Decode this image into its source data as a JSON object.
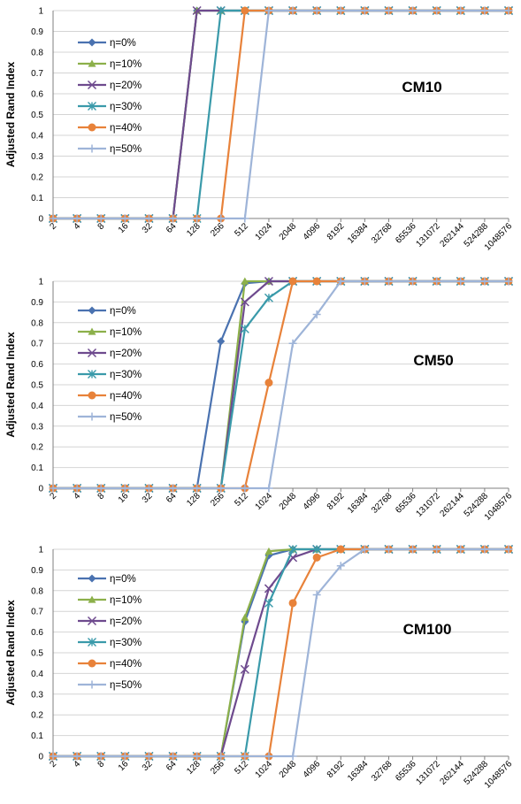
{
  "chart_data": [
    {
      "type": "line",
      "title": "CM10",
      "ylabel": "Adjusted Rand Index",
      "xlabel": "",
      "x": [
        "2",
        "4",
        "8",
        "16",
        "32",
        "64",
        "128",
        "256",
        "512",
        "1024",
        "2048",
        "4096",
        "8192",
        "16384",
        "32768",
        "65536",
        "131072",
        "262144",
        "524288",
        "1048576"
      ],
      "ylim": [
        0,
        1
      ],
      "yticks": [
        "0",
        "0.1",
        "0.2",
        "0.3",
        "0.4",
        "0.5",
        "0.6",
        "0.7",
        "0.8",
        "0.9",
        "1"
      ],
      "grid": true,
      "legend_position": "left",
      "series": [
        {
          "name": "η=0%",
          "color": "#4a72b0",
          "marker": "diamond",
          "values": [
            0,
            0,
            0,
            0,
            0,
            0,
            1,
            1,
            1,
            1,
            1,
            1,
            1,
            1,
            1,
            1,
            1,
            1,
            1,
            1
          ]
        },
        {
          "name": "η=10%",
          "color": "#8cb04a",
          "marker": "triangle",
          "values": [
            0,
            0,
            0,
            0,
            0,
            0,
            1,
            1,
            1,
            1,
            1,
            1,
            1,
            1,
            1,
            1,
            1,
            1,
            1,
            1
          ]
        },
        {
          "name": "η=20%",
          "color": "#6e4a8e",
          "marker": "x",
          "values": [
            0,
            0,
            0,
            0,
            0,
            0,
            1,
            1,
            1,
            1,
            1,
            1,
            1,
            1,
            1,
            1,
            1,
            1,
            1,
            1
          ]
        },
        {
          "name": "η=30%",
          "color": "#3a9aaa",
          "marker": "star",
          "values": [
            0,
            0,
            0,
            0,
            0,
            0,
            0,
            1,
            1,
            1,
            1,
            1,
            1,
            1,
            1,
            1,
            1,
            1,
            1,
            1
          ]
        },
        {
          "name": "η=40%",
          "color": "#e8823a",
          "marker": "circle",
          "values": [
            0,
            0,
            0,
            0,
            0,
            0,
            0,
            0,
            1,
            1,
            1,
            1,
            1,
            1,
            1,
            1,
            1,
            1,
            1,
            1
          ]
        },
        {
          "name": "η=50%",
          "color": "#9eb4d8",
          "marker": "plus",
          "values": [
            0,
            0,
            0,
            0,
            0,
            0,
            0,
            0,
            0,
            1,
            1,
            1,
            1,
            1,
            1,
            1,
            1,
            1,
            1,
            1
          ]
        }
      ]
    },
    {
      "type": "line",
      "title": "CM50",
      "ylabel": "Adjusted Rand Index",
      "xlabel": "",
      "x": [
        "2",
        "4",
        "8",
        "16",
        "32",
        "64",
        "128",
        "256",
        "512",
        "1024",
        "2048",
        "4096",
        "8192",
        "16384",
        "32768",
        "65536",
        "131072",
        "262144",
        "524288",
        "1048576"
      ],
      "ylim": [
        0,
        1
      ],
      "yticks": [
        "0",
        "0.1",
        "0.2",
        "0.3",
        "0.4",
        "0.5",
        "0.6",
        "0.7",
        "0.8",
        "0.9",
        "1"
      ],
      "grid": true,
      "legend_position": "left",
      "series": [
        {
          "name": "η=0%",
          "color": "#4a72b0",
          "marker": "diamond",
          "values": [
            0,
            0,
            0,
            0,
            0,
            0,
            0,
            0.71,
            0.99,
            1,
            1,
            1,
            1,
            1,
            1,
            1,
            1,
            1,
            1,
            1
          ]
        },
        {
          "name": "η=10%",
          "color": "#8cb04a",
          "marker": "triangle",
          "values": [
            0,
            0,
            0,
            0,
            0,
            0,
            0,
            0,
            1,
            1,
            1,
            1,
            1,
            1,
            1,
            1,
            1,
            1,
            1,
            1
          ]
        },
        {
          "name": "η=20%",
          "color": "#6e4a8e",
          "marker": "x",
          "values": [
            0,
            0,
            0,
            0,
            0,
            0,
            0,
            0,
            0.9,
            1,
            1,
            1,
            1,
            1,
            1,
            1,
            1,
            1,
            1,
            1
          ]
        },
        {
          "name": "η=30%",
          "color": "#3a9aaa",
          "marker": "star",
          "values": [
            0,
            0,
            0,
            0,
            0,
            0,
            0,
            0,
            0.77,
            0.92,
            1,
            1,
            1,
            1,
            1,
            1,
            1,
            1,
            1,
            1
          ]
        },
        {
          "name": "η=40%",
          "color": "#e8823a",
          "marker": "circle",
          "values": [
            0,
            0,
            0,
            0,
            0,
            0,
            0,
            0,
            0,
            0.51,
            1,
            1,
            1,
            1,
            1,
            1,
            1,
            1,
            1,
            1
          ]
        },
        {
          "name": "η=50%",
          "color": "#9eb4d8",
          "marker": "plus",
          "values": [
            0,
            0,
            0,
            0,
            0,
            0,
            0,
            0,
            0,
            0,
            0.7,
            0.84,
            1,
            1,
            1,
            1,
            1,
            1,
            1,
            1
          ]
        }
      ]
    },
    {
      "type": "line",
      "title": "CM100",
      "ylabel": "Adjusted Rand Index",
      "xlabel": "",
      "x": [
        "2",
        "4",
        "8",
        "16",
        "32",
        "64",
        "128",
        "256",
        "512",
        "1024",
        "2048",
        "4096",
        "8192",
        "16384",
        "32768",
        "65536",
        "131072",
        "262144",
        "524288",
        "1048576"
      ],
      "ylim": [
        0,
        1
      ],
      "yticks": [
        "0",
        "0.1",
        "0.2",
        "0.3",
        "0.4",
        "0.5",
        "0.6",
        "0.7",
        "0.8",
        "0.9",
        "1"
      ],
      "grid": true,
      "legend_position": "left",
      "series": [
        {
          "name": "η=0%",
          "color": "#4a72b0",
          "marker": "diamond",
          "values": [
            0,
            0,
            0,
            0,
            0,
            0,
            0,
            0,
            0.65,
            0.97,
            1,
            1,
            1,
            1,
            1,
            1,
            1,
            1,
            1,
            1
          ]
        },
        {
          "name": "η=10%",
          "color": "#8cb04a",
          "marker": "triangle",
          "values": [
            0,
            0,
            0,
            0,
            0,
            0,
            0,
            0,
            0.67,
            0.99,
            1,
            1,
            1,
            1,
            1,
            1,
            1,
            1,
            1,
            1
          ]
        },
        {
          "name": "η=20%",
          "color": "#6e4a8e",
          "marker": "x",
          "values": [
            0,
            0,
            0,
            0,
            0,
            0,
            0,
            0,
            0.42,
            0.81,
            0.96,
            1,
            1,
            1,
            1,
            1,
            1,
            1,
            1,
            1
          ]
        },
        {
          "name": "η=30%",
          "color": "#3a9aaa",
          "marker": "star",
          "values": [
            0,
            0,
            0,
            0,
            0,
            0,
            0,
            0,
            0,
            0.74,
            1,
            1,
            1,
            1,
            1,
            1,
            1,
            1,
            1,
            1
          ]
        },
        {
          "name": "η=40%",
          "color": "#e8823a",
          "marker": "circle",
          "values": [
            0,
            0,
            0,
            0,
            0,
            0,
            0,
            0,
            0,
            0,
            0.74,
            0.96,
            1,
            1,
            1,
            1,
            1,
            1,
            1,
            1
          ]
        },
        {
          "name": "η=50%",
          "color": "#9eb4d8",
          "marker": "plus",
          "values": [
            0,
            0,
            0,
            0,
            0,
            0,
            0,
            0,
            0,
            0,
            0,
            0.78,
            0.92,
            1,
            1,
            1,
            1,
            1,
            1,
            1
          ]
        }
      ]
    }
  ]
}
